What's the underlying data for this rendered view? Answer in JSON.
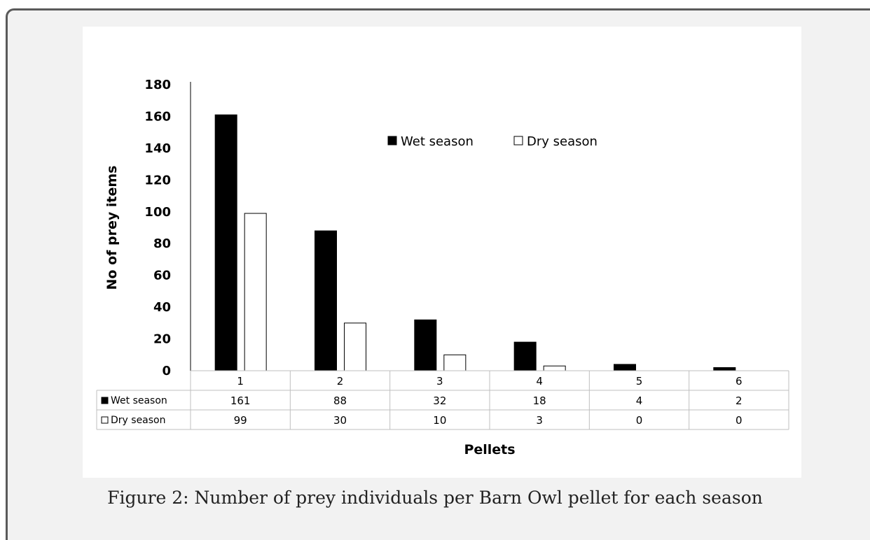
{
  "caption": "Figure 2: Number of prey individuals per Barn Owl pellet for each season",
  "chart_data": {
    "type": "bar",
    "xlabel": "Pellets",
    "ylabel": "No of prey items",
    "ylim": [
      0,
      180
    ],
    "yticks": [
      "0",
      "20",
      "40",
      "60",
      "80",
      "100",
      "120",
      "140",
      "160",
      "180"
    ],
    "categories": [
      "1",
      "2",
      "3",
      "4",
      "5",
      "6"
    ],
    "grid": false,
    "legend_position": "top-center",
    "data_table": true,
    "series": [
      {
        "name": "Wet season",
        "values": [
          161,
          88,
          32,
          18,
          4,
          2
        ],
        "color": "#000000"
      },
      {
        "name": "Dry season",
        "values": [
          99,
          30,
          10,
          3,
          0,
          0
        ],
        "color": "#ffffff"
      }
    ]
  }
}
